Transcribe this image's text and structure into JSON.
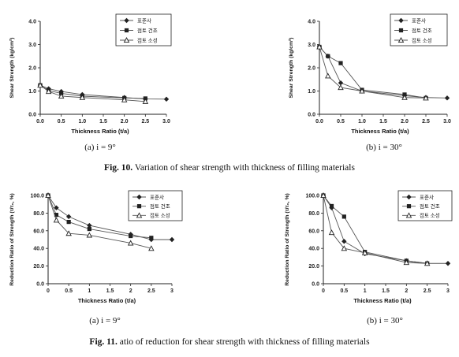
{
  "colors": {
    "ink": "#222222",
    "series_line": "#555555"
  },
  "figures": [
    {
      "caption_label": "Fig. 10.",
      "caption_text": " Variation of shear strength with thickness of filling materials"
    },
    {
      "caption_label": "Fig. 11.",
      "caption_text": " atio of reduction for shear strength with thickness of filling materials"
    }
  ],
  "chart_data": [
    {
      "type": "line",
      "subcaption": "(a)  i  =  9°",
      "xlabel": "Thickness Ratio (t/a)",
      "ylabel": "Shear Strength (kg/cm²)",
      "xlim": [
        0,
        3
      ],
      "ylim": [
        0,
        4
      ],
      "xticks": [
        "0.0",
        "0.5",
        "1.0",
        "1.5",
        "2.0",
        "2.5",
        "3.0"
      ],
      "yticks": [
        "0.0",
        "1.0",
        "2.0",
        "3.0",
        "4.0"
      ],
      "legend_position": "top-right",
      "series": [
        {
          "name": "표준사",
          "marker": "diamond",
          "x": [
            0,
            0.2,
            0.5,
            1.0,
            2.0,
            2.5,
            3.0
          ],
          "y": [
            1.25,
            1.1,
            0.98,
            0.85,
            0.72,
            0.66,
            0.65
          ]
        },
        {
          "name": "점토 건조",
          "marker": "square",
          "x": [
            0,
            0.2,
            0.5,
            1.0,
            2.0,
            2.5
          ],
          "y": [
            1.25,
            1.02,
            0.9,
            0.78,
            0.7,
            0.68
          ]
        },
        {
          "name": "점토 소성",
          "marker": "triangle",
          "x": [
            0,
            0.2,
            0.5,
            1.0,
            2.0,
            2.5
          ],
          "y": [
            1.25,
            0.98,
            0.78,
            0.72,
            0.62,
            0.55
          ]
        }
      ]
    },
    {
      "type": "line",
      "subcaption": "(b)  i  =  30°",
      "xlabel": "Thickness Ratio (t/a)",
      "ylabel": "Shear Strength (kg/cm²)",
      "xlim": [
        0,
        3
      ],
      "ylim": [
        0,
        4
      ],
      "xticks": [
        "0.0",
        "0.5",
        "1.0",
        "1.5",
        "2.0",
        "2.5",
        "3.0"
      ],
      "yticks": [
        "0.0",
        "1.0",
        "2.0",
        "3.0",
        "4.0"
      ],
      "legend_position": "top-right",
      "series": [
        {
          "name": "표준사",
          "marker": "diamond",
          "x": [
            0,
            0.2,
            0.5,
            1.0,
            2.0,
            2.5,
            3.0
          ],
          "y": [
            2.9,
            2.5,
            1.35,
            1.0,
            0.8,
            0.72,
            0.7
          ]
        },
        {
          "name": "점토 건조",
          "marker": "square",
          "x": [
            0,
            0.2,
            0.5,
            1.0,
            2.0,
            2.5
          ],
          "y": [
            2.9,
            2.5,
            2.2,
            1.05,
            0.85,
            0.7
          ]
        },
        {
          "name": "점토 소성",
          "marker": "triangle",
          "x": [
            0,
            0.2,
            0.5,
            1.0,
            2.0,
            2.5
          ],
          "y": [
            2.9,
            1.65,
            1.15,
            1.0,
            0.72,
            0.7
          ]
        }
      ]
    },
    {
      "type": "line",
      "subcaption": "(a)  i  =  9°",
      "xlabel": "Thickness Ratio  (t/a)",
      "ylabel": "Reduction Ratio of Strength (τ/τ₀, %)",
      "xlim": [
        0,
        3
      ],
      "ylim": [
        0,
        100
      ],
      "xticks": [
        "0",
        "0.5",
        "1",
        "1.5",
        "2",
        "2.5",
        "3"
      ],
      "yticks": [
        "0.0",
        "20.0",
        "40.0",
        "60.0",
        "80.0",
        "100.0"
      ],
      "legend_position": "top-right",
      "series": [
        {
          "name": "표준사",
          "marker": "diamond",
          "x": [
            0,
            0.2,
            0.5,
            1.0,
            2.0,
            2.5,
            3.0
          ],
          "y": [
            100,
            86,
            76,
            66,
            56,
            50,
            50
          ]
        },
        {
          "name": "점토 건조",
          "marker": "square",
          "x": [
            0,
            0.2,
            0.5,
            1.0,
            2.0,
            2.5
          ],
          "y": [
            100,
            78,
            70,
            62,
            54,
            52
          ]
        },
        {
          "name": "점토 소성",
          "marker": "triangle",
          "x": [
            0,
            0.2,
            0.5,
            1.0,
            2.0,
            2.5
          ],
          "y": [
            100,
            72,
            57,
            55,
            46,
            40
          ]
        }
      ]
    },
    {
      "type": "line",
      "subcaption": "(b)  i  =  30°",
      "xlabel": "Thickness Ratio  (t/a)",
      "ylabel": "Reduction Ratio of Strength (τ/τ₀, %)",
      "xlim": [
        0,
        3
      ],
      "ylim": [
        0,
        100
      ],
      "xticks": [
        "0",
        "0.5",
        "1",
        "1.5",
        "2",
        "2.5",
        "3"
      ],
      "yticks": [
        "0.0",
        "20.0",
        "40.0",
        "60.0",
        "80.0",
        "100.0"
      ],
      "legend_position": "top-right",
      "series": [
        {
          "name": "표준사",
          "marker": "diamond",
          "x": [
            0,
            0.2,
            0.5,
            1.0,
            2.0,
            2.5,
            3.0
          ],
          "y": [
            100,
            86,
            48,
            34,
            26,
            23,
            23
          ]
        },
        {
          "name": "점토 건조",
          "marker": "square",
          "x": [
            0,
            0.2,
            0.5,
            1.0,
            2.0,
            2.5
          ],
          "y": [
            100,
            88,
            76,
            36,
            26,
            23
          ]
        },
        {
          "name": "점토 소성",
          "marker": "triangle",
          "x": [
            0,
            0.2,
            0.5,
            1.0,
            2.0,
            2.5
          ],
          "y": [
            100,
            58,
            40,
            35,
            24,
            23
          ]
        }
      ]
    }
  ]
}
